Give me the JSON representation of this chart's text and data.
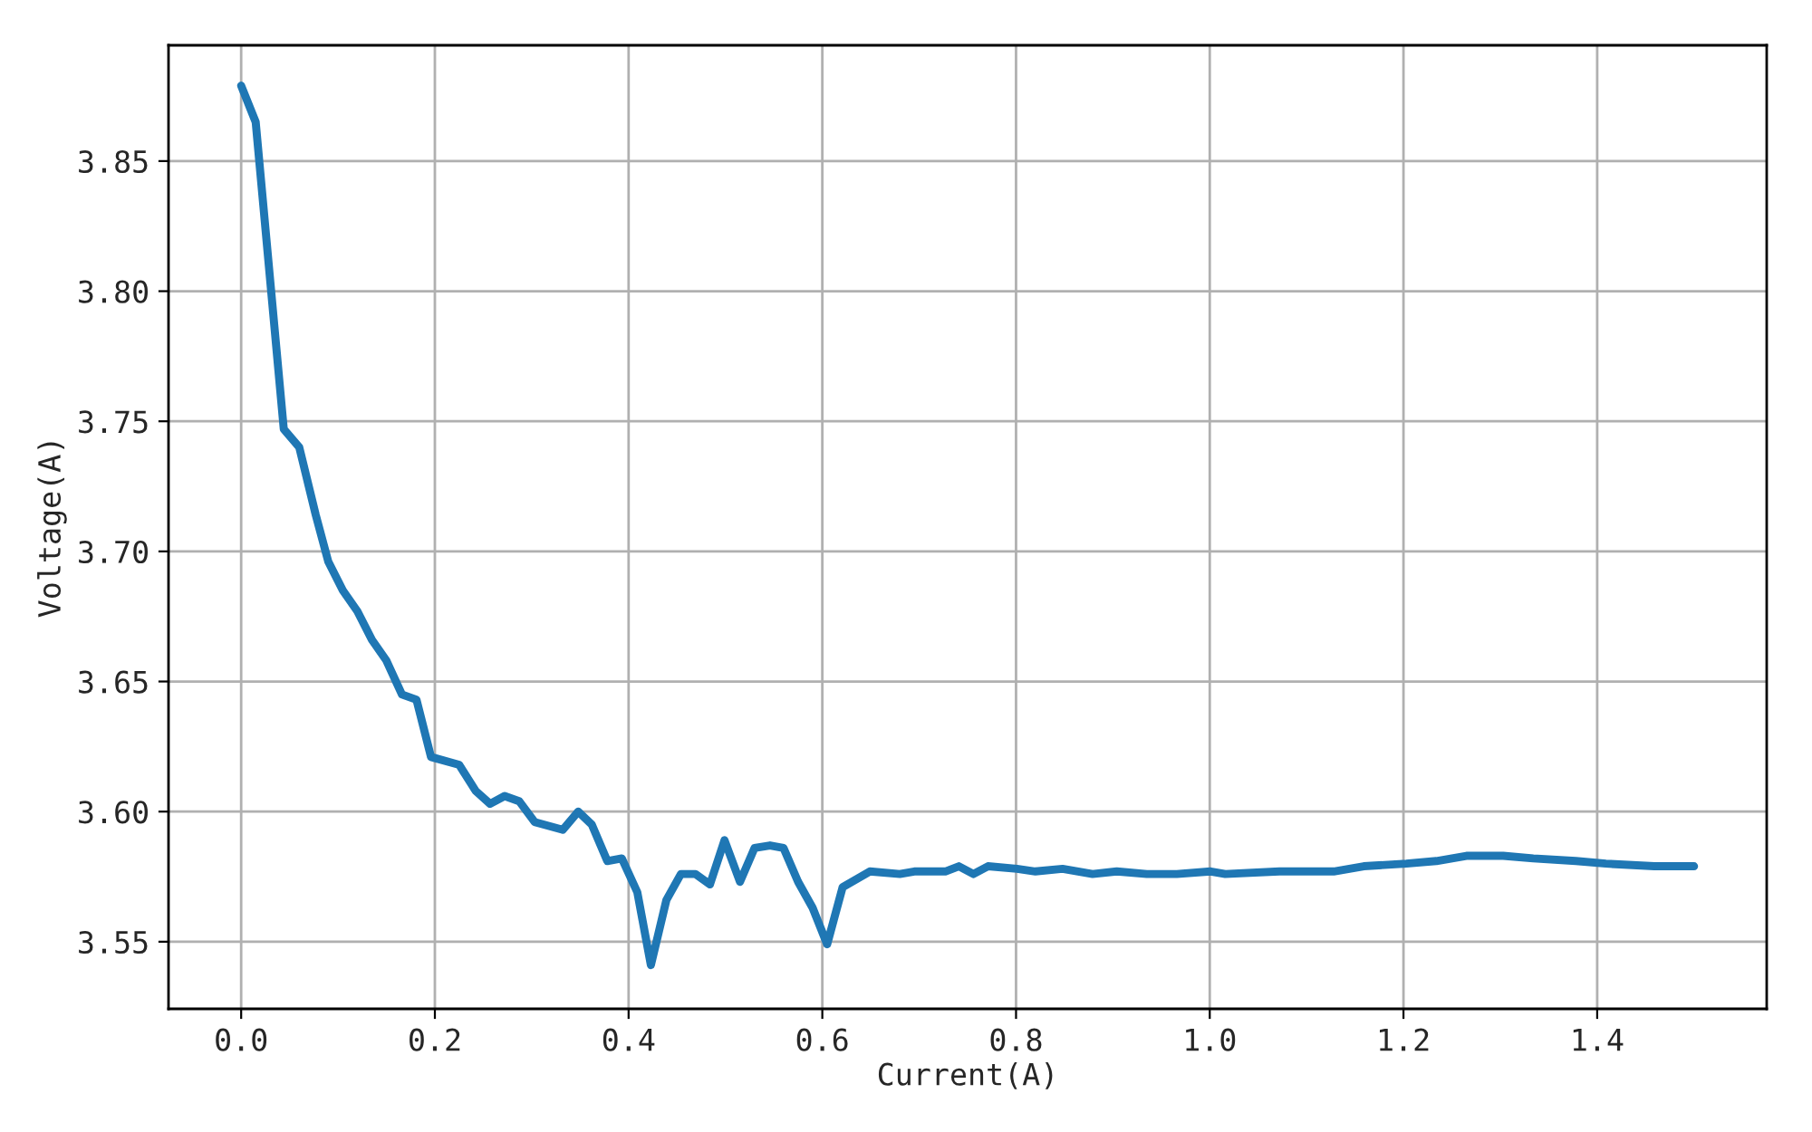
{
  "chart_data": {
    "type": "line",
    "xlabel": "Current(A)",
    "ylabel": "Voltage(A)",
    "xlim": [
      -0.075,
      1.575
    ],
    "xticks": [
      {
        "value": 0,
        "label": "0.0"
      },
      0.2,
      0.4,
      0.6,
      0.8,
      {
        "value": 1,
        "label": "1.0"
      },
      1.2,
      1.4
    ],
    "ylim": [
      3.5242,
      3.8945
    ],
    "yticks": [
      3.55,
      {
        "value": 3.6,
        "label": "3.60"
      },
      3.65,
      {
        "value": 3.7,
        "label": "3.70"
      },
      3.75,
      {
        "value": 3.8,
        "label": "3.80"
      },
      3.85
    ],
    "grid": true,
    "marker": "none",
    "line_style": "solid",
    "series": [
      {
        "color": "#1f77b4",
        "x": [
          0,
          0.015,
          0.044,
          0.06,
          0.077,
          0.09,
          0.105,
          0.12,
          0.135,
          0.15,
          0.166,
          0.181,
          0.196,
          0.225,
          0.242,
          0.257,
          0.272,
          0.287,
          0.303,
          0.332,
          0.348,
          0.362,
          0.378,
          0.393,
          0.409,
          0.423,
          0.439,
          0.454,
          0.469,
          0.484,
          0.499,
          0.515,
          0.53,
          0.546,
          0.56,
          0.575,
          0.59,
          0.605,
          0.621,
          0.649,
          0.68,
          0.695,
          0.727,
          0.741,
          0.756,
          0.771,
          0.801,
          0.82,
          0.848,
          0.879,
          0.904,
          0.935,
          0.966,
          1.001,
          1.016,
          1.072,
          1.128,
          1.159,
          1.203,
          1.234,
          1.265,
          1.303,
          1.334,
          1.378,
          1.409,
          1.459,
          1.5
        ],
        "values": [
          3.879,
          3.865,
          3.747,
          3.74,
          3.714,
          3.696,
          3.685,
          3.677,
          3.666,
          3.658,
          3.645,
          3.643,
          3.621,
          3.618,
          3.608,
          3.603,
          3.606,
          3.604,
          3.596,
          3.593,
          3.6,
          3.595,
          3.581,
          3.582,
          3.569,
          3.541,
          3.566,
          3.576,
          3.576,
          3.572,
          3.589,
          3.573,
          3.586,
          3.587,
          3.586,
          3.573,
          3.563,
          3.549,
          3.571,
          3.577,
          3.576,
          3.577,
          3.577,
          3.579,
          3.576,
          3.579,
          3.578,
          3.577,
          3.578,
          3.576,
          3.577,
          3.576,
          3.576,
          3.577,
          3.576,
          3.577,
          3.577,
          3.579,
          3.58,
          3.581,
          3.583,
          3.583,
          3.582,
          3.581,
          3.58,
          3.579,
          3.579
        ]
      }
    ]
  }
}
